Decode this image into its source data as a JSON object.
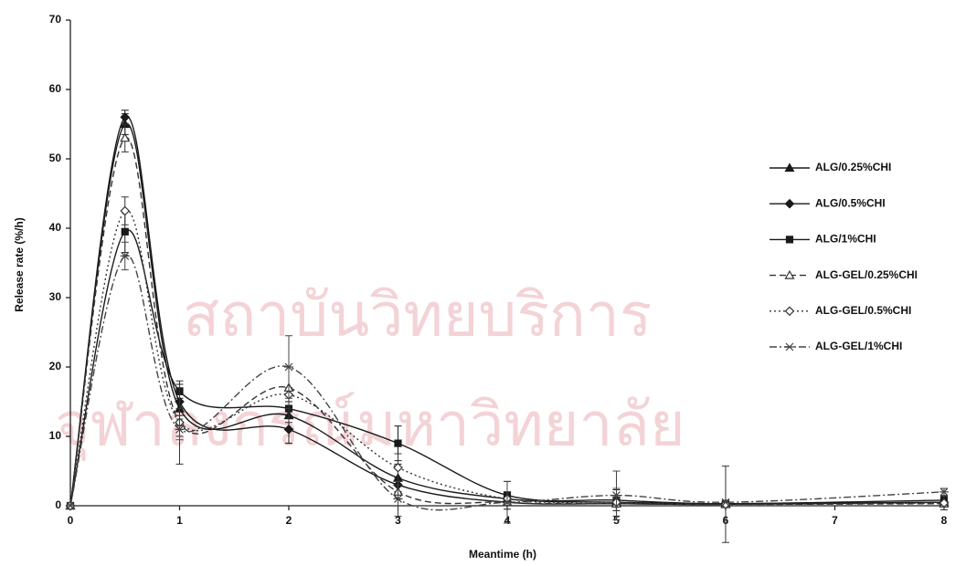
{
  "chart_data": {
    "type": "line",
    "watermark": [
      "สถาบันวิทยบริการ",
      "จุฬาลงกรณ์มหาวิทยาลัย"
    ],
    "x_label": "Meantime (h)",
    "y_label": "Release rate (%/h)",
    "x": [
      0,
      0.5,
      1,
      2,
      3,
      4,
      5,
      6,
      8
    ],
    "xlim": [
      0,
      8
    ],
    "xticks": [
      0,
      1,
      2,
      3,
      4,
      5,
      6,
      7,
      8
    ],
    "ylim": [
      0,
      70
    ],
    "yticks": [
      0,
      10,
      20,
      30,
      40,
      50,
      60,
      70
    ],
    "legend": "right",
    "smooth": true,
    "series": [
      {
        "name": "ALG/0.25%CHI",
        "color": "#1a1a1a",
        "dash": "solid",
        "marker": "triangle",
        "values": [
          0,
          55,
          14,
          13,
          4,
          1,
          0.5,
          0.3,
          0.5
        ],
        "errors": [
          null,
          1.5,
          2,
          2,
          2,
          1,
          null,
          null,
          null
        ]
      },
      {
        "name": "ALG/0.5%CHI",
        "color": "#1a1a1a",
        "dash": "solid",
        "marker": "diamond",
        "values": [
          0,
          56,
          15,
          11,
          3,
          0.5,
          0.3,
          0.2,
          0.5
        ],
        "errors": [
          null,
          1,
          2,
          2,
          1,
          0.5,
          null,
          null,
          null
        ]
      },
      {
        "name": "ALG/1%CHI",
        "color": "#1a1a1a",
        "dash": "solid",
        "marker": "square",
        "values": [
          0,
          39.5,
          16.5,
          14,
          9,
          1.5,
          0.8,
          0.3,
          0.8
        ],
        "errors": [
          null,
          3,
          1,
          3,
          2.5,
          2,
          1.5,
          null,
          0.5
        ]
      },
      {
        "name": "ALG-GEL/0.25%CHI",
        "color": "#333333",
        "dash": "dashed",
        "marker": "triangle-open",
        "values": [
          0,
          53,
          12,
          17,
          2,
          0.5,
          0.3,
          0.2,
          0.3
        ],
        "errors": [
          null,
          2,
          6,
          3,
          1,
          null,
          null,
          null,
          null
        ]
      },
      {
        "name": "ALG-GEL/0.5%CHI",
        "color": "#333333",
        "dash": "dotted",
        "marker": "diamond-open",
        "values": [
          0,
          42.5,
          12,
          16,
          5.5,
          1,
          0.5,
          0.2,
          0.4
        ],
        "errors": [
          null,
          2,
          2,
          4,
          2,
          1,
          2,
          5.5,
          1
        ]
      },
      {
        "name": "ALG-GEL/1%CHI",
        "color": "#444444",
        "dash": "dashdot",
        "marker": "asterisk",
        "values": [
          0,
          36,
          11,
          20,
          1,
          0.5,
          1.5,
          0.5,
          2
        ],
        "errors": [
          null,
          2,
          1.5,
          4.5,
          2.5,
          3,
          3.5,
          null,
          0.5
        ]
      }
    ]
  }
}
